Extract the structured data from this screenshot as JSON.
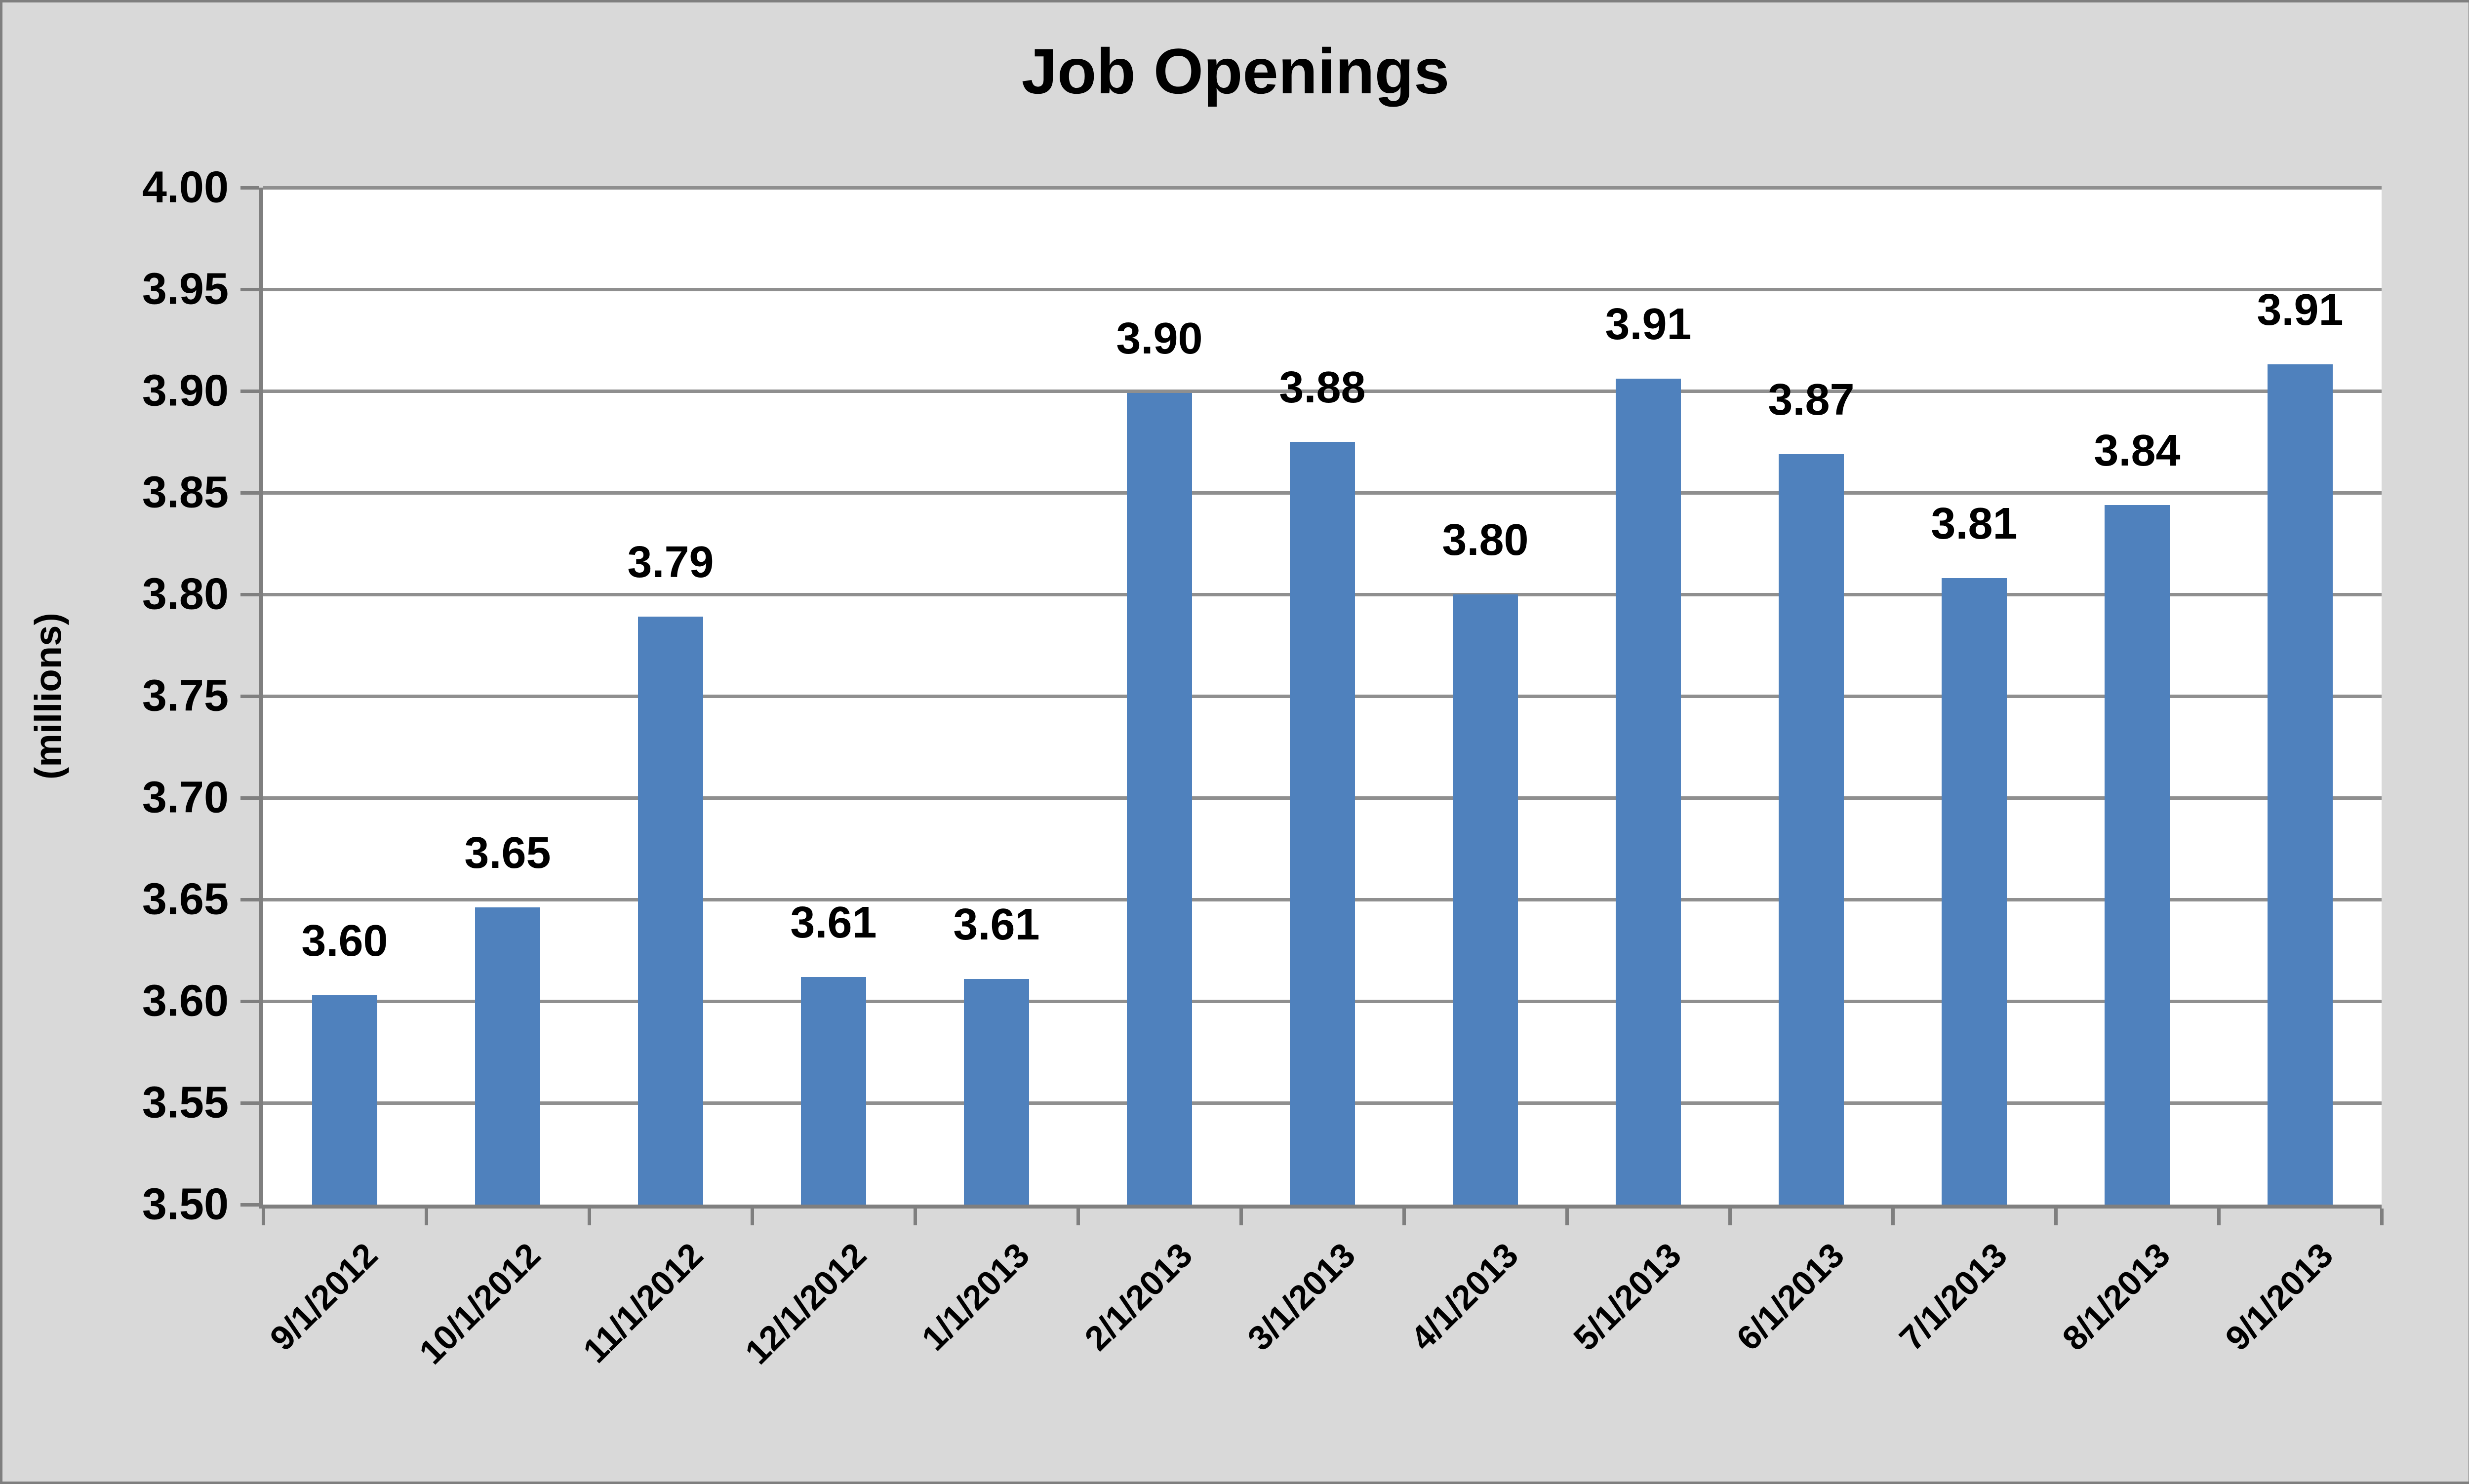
{
  "chart_data": {
    "type": "bar",
    "title": "Job Openings",
    "ylabel": "(millions)",
    "ylim": [
      3.5,
      4.0
    ],
    "ytick_step": 0.05,
    "ytick_labels": [
      "3.50",
      "3.55",
      "3.60",
      "3.65",
      "3.70",
      "3.75",
      "3.80",
      "3.85",
      "3.90",
      "3.95",
      "4.00"
    ],
    "categories": [
      "9/1/2012",
      "10/1/2012",
      "11/1/2012",
      "12/1/2012",
      "1/1/2013",
      "2/1/2013",
      "3/1/2013",
      "4/1/2013",
      "5/1/2013",
      "6/1/2013",
      "7/1/2013",
      "8/1/2013",
      "9/1/2013"
    ],
    "series": [
      {
        "name": "Job Openings",
        "values": [
          3.603,
          3.646,
          3.789,
          3.612,
          3.611,
          3.899,
          3.875,
          3.8,
          3.906,
          3.869,
          3.808,
          3.844,
          3.913
        ],
        "labels": [
          "3.60",
          "3.65",
          "3.79",
          "3.61",
          "3.61",
          "3.90",
          "3.88",
          "3.80",
          "3.91",
          "3.87",
          "3.81",
          "3.84",
          "3.91"
        ]
      }
    ],
    "legend": "none",
    "grid": "horizontal",
    "colors": {
      "bar": "#4F81BD",
      "gridline": "#8F8F8F",
      "axis": "#7F7F7F",
      "background": "#D9D9D9",
      "plot_background": "#FFFFFF",
      "text": "#000000"
    }
  }
}
